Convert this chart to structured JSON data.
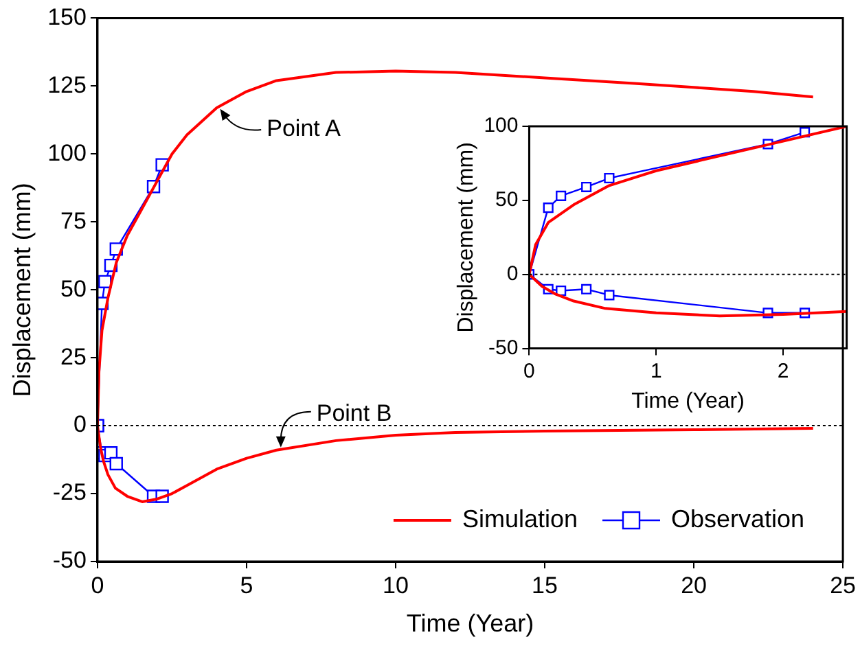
{
  "chart_data": [
    {
      "type": "line",
      "xlabel": "Time (Year)",
      "ylabel": "Displacement (mm)",
      "xlim": [
        0,
        25
      ],
      "ylim": [
        -50,
        150
      ],
      "xticks": [
        0,
        5,
        10,
        15,
        20,
        25
      ],
      "yticks": [
        -50,
        -25,
        0,
        25,
        50,
        75,
        100,
        125,
        150
      ],
      "grid": false,
      "legend": "bottom right",
      "ref_lines": [
        {
          "axis": "y",
          "value": 0,
          "line_style": "dotted",
          "color": "#000000"
        }
      ],
      "annotations": [
        {
          "text": "Point A",
          "x": 4.2,
          "y": 118
        },
        {
          "text": "Point B",
          "x": 6.1,
          "y": -9
        }
      ],
      "series": [
        {
          "name": "Simulation",
          "color": "#ff0000",
          "marker": "none",
          "x": [
            0,
            0.05,
            0.15,
            0.35,
            0.63,
            1,
            1.5,
            2,
            2.5,
            3,
            4,
            5,
            6,
            8,
            10,
            12,
            15,
            18,
            20,
            22,
            24
          ],
          "values": [
            0,
            20,
            35,
            47,
            60,
            70,
            80,
            90,
            100,
            107,
            117,
            123,
            127,
            130,
            130.5,
            130,
            128,
            126,
            124.5,
            123,
            121
          ]
        },
        {
          "color": "#ff0000",
          "marker": "none",
          "x": [
            0,
            0.1,
            0.2,
            0.35,
            0.6,
            1,
            1.5,
            2,
            2.5,
            3,
            4,
            5,
            6,
            8,
            10,
            12,
            15,
            20,
            24
          ],
          "values": [
            0,
            -8,
            -13,
            -18,
            -23,
            -26,
            -28,
            -27,
            -25,
            -22,
            -16,
            -12,
            -9,
            -5.5,
            -3.5,
            -2.5,
            -2,
            -1.5,
            -1
          ]
        },
        {
          "name": "Observation",
          "color": "#0000ff",
          "marker": "square",
          "x": [
            0,
            0.15,
            0.25,
            0.45,
            0.63,
            1.88,
            2.17
          ],
          "values": [
            0,
            45,
            53,
            59,
            65,
            88,
            96
          ]
        },
        {
          "color": "#0000ff",
          "marker": "square",
          "x": [
            0,
            0.15,
            0.25,
            0.45,
            0.63,
            1.88,
            2.17
          ],
          "values": [
            0,
            -10,
            -11,
            -10,
            -14,
            -26,
            -26
          ]
        }
      ]
    },
    {
      "type": "line",
      "xlabel": "Time (Year)",
      "ylabel": "Displacement (mm)",
      "xlim": [
        0,
        2.5
      ],
      "ylim": [
        -50,
        100
      ],
      "xticks": [
        0,
        1,
        2
      ],
      "yticks": [
        -50,
        0,
        50,
        100
      ],
      "grid": false,
      "ref_lines": [
        {
          "axis": "y",
          "value": 0,
          "line_style": "dotted",
          "color": "#000000"
        }
      ],
      "series": [
        {
          "color": "#ff0000",
          "marker": "none",
          "x": [
            0,
            0.05,
            0.15,
            0.35,
            0.63,
            1,
            1.5,
            2,
            2.5
          ],
          "values": [
            0,
            20,
            35,
            47,
            60,
            70,
            80,
            90,
            100
          ]
        },
        {
          "color": "#ff0000",
          "marker": "none",
          "x": [
            0,
            0.1,
            0.2,
            0.35,
            0.6,
            1,
            1.5,
            2,
            2.5
          ],
          "values": [
            0,
            -8,
            -13,
            -18,
            -23,
            -26,
            -28,
            -27,
            -25
          ]
        },
        {
          "color": "#0000ff",
          "marker": "square",
          "x": [
            0,
            0.15,
            0.25,
            0.45,
            0.63,
            1.88,
            2.17
          ],
          "values": [
            0,
            45,
            53,
            59,
            65,
            88,
            96
          ]
        },
        {
          "color": "#0000ff",
          "marker": "square",
          "x": [
            0,
            0.15,
            0.25,
            0.45,
            0.63,
            1.88,
            2.17
          ],
          "values": [
            0,
            -10,
            -11,
            -10,
            -14,
            -26,
            -26
          ]
        }
      ]
    }
  ]
}
